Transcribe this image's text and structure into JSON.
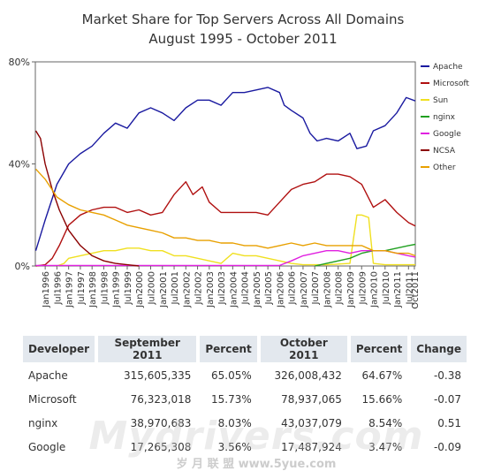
{
  "chart_data": {
    "type": "line",
    "title": "Market Share for Top Servers Across All Domains",
    "subtitle": "August 1995 - October 2011",
    "ylim": [
      0,
      80
    ],
    "y_ticks": [
      "0%",
      "40%",
      "80%"
    ],
    "x_range": [
      1995.58,
      2011.79
    ],
    "x_ticks": [
      "Jan1996",
      "Jul1996",
      "Jan1997",
      "Jul1997",
      "Jan1998",
      "Jul1998",
      "Jan1999",
      "Jul1999",
      "Jan2000",
      "Jul2000",
      "Jan2001",
      "Jul2001",
      "Jan2002",
      "Jul2002",
      "Jan2003",
      "Jul2003",
      "Jan2004",
      "Jul2004",
      "Jan2005",
      "Jul2005",
      "Jan2006",
      "Jul2006",
      "Jan2007",
      "Jul2007",
      "Jan2008",
      "Jul2008",
      "Jan2009",
      "Jul2009",
      "Jan2010",
      "Jul2010",
      "Jan2011",
      "Jul2011",
      "Oct2011"
    ],
    "legend_position": "right",
    "grid": false,
    "series": [
      {
        "name": "Apache",
        "color": "#1a1aa0",
        "points": [
          [
            1995.6,
            6
          ],
          [
            1996.0,
            18
          ],
          [
            1996.5,
            32
          ],
          [
            1997.0,
            40
          ],
          [
            1997.5,
            44
          ],
          [
            1998.0,
            47
          ],
          [
            1998.5,
            52
          ],
          [
            1999.0,
            56
          ],
          [
            1999.5,
            54
          ],
          [
            2000.0,
            60
          ],
          [
            2000.5,
            62
          ],
          [
            2001.0,
            60
          ],
          [
            2001.5,
            57
          ],
          [
            2002.0,
            62
          ],
          [
            2002.5,
            65
          ],
          [
            2003.0,
            65
          ],
          [
            2003.5,
            63
          ],
          [
            2004.0,
            68
          ],
          [
            2004.5,
            68
          ],
          [
            2005.0,
            69
          ],
          [
            2005.5,
            70
          ],
          [
            2006.0,
            68
          ],
          [
            2006.2,
            63
          ],
          [
            2006.5,
            61
          ],
          [
            2007.0,
            58
          ],
          [
            2007.3,
            52
          ],
          [
            2007.6,
            49
          ],
          [
            2008.0,
            50
          ],
          [
            2008.5,
            49
          ],
          [
            2009.0,
            52
          ],
          [
            2009.3,
            46
          ],
          [
            2009.7,
            47
          ],
          [
            2010.0,
            53
          ],
          [
            2010.5,
            55
          ],
          [
            2011.0,
            60
          ],
          [
            2011.4,
            66
          ],
          [
            2011.79,
            64.7
          ]
        ]
      },
      {
        "name": "Microsoft",
        "color": "#b01010",
        "points": [
          [
            1995.6,
            0
          ],
          [
            1996.0,
            0.5
          ],
          [
            1996.3,
            3
          ],
          [
            1996.6,
            8
          ],
          [
            1997.0,
            16
          ],
          [
            1997.5,
            20
          ],
          [
            1998.0,
            22
          ],
          [
            1998.5,
            23
          ],
          [
            1999.0,
            23
          ],
          [
            1999.5,
            21
          ],
          [
            2000.0,
            22
          ],
          [
            2000.5,
            20
          ],
          [
            2001.0,
            21
          ],
          [
            2001.5,
            28
          ],
          [
            2002.0,
            33
          ],
          [
            2002.3,
            28
          ],
          [
            2002.7,
            31
          ],
          [
            2003.0,
            25
          ],
          [
            2003.5,
            21
          ],
          [
            2004.0,
            21
          ],
          [
            2004.5,
            21
          ],
          [
            2005.0,
            21
          ],
          [
            2005.5,
            20
          ],
          [
            2006.0,
            25
          ],
          [
            2006.5,
            30
          ],
          [
            2007.0,
            32
          ],
          [
            2007.5,
            33
          ],
          [
            2008.0,
            36
          ],
          [
            2008.5,
            36
          ],
          [
            2009.0,
            35
          ],
          [
            2009.5,
            32
          ],
          [
            2010.0,
            23
          ],
          [
            2010.5,
            26
          ],
          [
            2011.0,
            21
          ],
          [
            2011.5,
            17
          ],
          [
            2011.79,
            15.7
          ]
        ]
      },
      {
        "name": "Sun",
        "color": "#f0e020",
        "points": [
          [
            1996.5,
            0
          ],
          [
            1996.8,
            1
          ],
          [
            1997.0,
            3
          ],
          [
            1997.5,
            4
          ],
          [
            1998.0,
            5
          ],
          [
            1998.5,
            6
          ],
          [
            1999.0,
            6
          ],
          [
            1999.5,
            7
          ],
          [
            2000.0,
            7
          ],
          [
            2000.5,
            6
          ],
          [
            2001.0,
            6
          ],
          [
            2001.5,
            4
          ],
          [
            2002.0,
            4
          ],
          [
            2002.5,
            3
          ],
          [
            2003.0,
            2
          ],
          [
            2003.5,
            1
          ],
          [
            2004.0,
            5
          ],
          [
            2004.5,
            4
          ],
          [
            2005.0,
            4
          ],
          [
            2005.5,
            3
          ],
          [
            2006.0,
            2
          ],
          [
            2006.5,
            1
          ],
          [
            2007.0,
            0.5
          ],
          [
            2008.0,
            0.5
          ],
          [
            2009.0,
            1
          ],
          [
            2009.3,
            20
          ],
          [
            2009.5,
            20
          ],
          [
            2009.8,
            19
          ],
          [
            2010.0,
            1
          ],
          [
            2010.5,
            0.5
          ],
          [
            2011.79,
            0.5
          ]
        ]
      },
      {
        "name": "nginx",
        "color": "#20a020",
        "points": [
          [
            2007.5,
            0
          ],
          [
            2008.0,
            1
          ],
          [
            2008.5,
            2
          ],
          [
            2009.0,
            3
          ],
          [
            2009.5,
            5
          ],
          [
            2010.0,
            6
          ],
          [
            2010.5,
            6
          ],
          [
            2011.0,
            7
          ],
          [
            2011.5,
            8
          ],
          [
            2011.79,
            8.5
          ]
        ]
      },
      {
        "name": "Google",
        "color": "#e020e0",
        "points": [
          [
            1995.6,
            0.2
          ],
          [
            2001.0,
            0.2
          ],
          [
            2006.0,
            0.2
          ],
          [
            2006.5,
            2
          ],
          [
            2007.0,
            4
          ],
          [
            2007.5,
            5
          ],
          [
            2008.0,
            6
          ],
          [
            2008.5,
            6
          ],
          [
            2009.0,
            5
          ],
          [
            2009.5,
            6
          ],
          [
            2010.0,
            6
          ],
          [
            2010.5,
            6
          ],
          [
            2011.0,
            5
          ],
          [
            2011.5,
            4
          ],
          [
            2011.79,
            3.5
          ]
        ]
      },
      {
        "name": "NCSA",
        "color": "#8b0000",
        "points": [
          [
            1995.6,
            53
          ],
          [
            1995.8,
            50
          ],
          [
            1996.0,
            40
          ],
          [
            1996.3,
            30
          ],
          [
            1996.6,
            22
          ],
          [
            1997.0,
            14
          ],
          [
            1997.5,
            8
          ],
          [
            1998.0,
            4
          ],
          [
            1998.5,
            2
          ],
          [
            1999.0,
            1
          ],
          [
            1999.5,
            0.5
          ],
          [
            2000.0,
            0
          ]
        ]
      },
      {
        "name": "Other",
        "color": "#e8a000",
        "points": [
          [
            1995.6,
            38
          ],
          [
            1996.0,
            34
          ],
          [
            1996.5,
            27
          ],
          [
            1997.0,
            24
          ],
          [
            1997.5,
            22
          ],
          [
            1998.0,
            21
          ],
          [
            1998.5,
            20
          ],
          [
            1999.0,
            18
          ],
          [
            1999.5,
            16
          ],
          [
            2000.0,
            15
          ],
          [
            2000.5,
            14
          ],
          [
            2001.0,
            13
          ],
          [
            2001.5,
            11
          ],
          [
            2002.0,
            11
          ],
          [
            2002.5,
            10
          ],
          [
            2003.0,
            10
          ],
          [
            2003.5,
            9
          ],
          [
            2004.0,
            9
          ],
          [
            2004.5,
            8
          ],
          [
            2005.0,
            8
          ],
          [
            2005.5,
            7
          ],
          [
            2006.0,
            8
          ],
          [
            2006.5,
            9
          ],
          [
            2007.0,
            8
          ],
          [
            2007.5,
            9
          ],
          [
            2008.0,
            8
          ],
          [
            2008.5,
            8
          ],
          [
            2009.0,
            8
          ],
          [
            2009.5,
            8
          ],
          [
            2010.0,
            6
          ],
          [
            2010.5,
            6
          ],
          [
            2011.0,
            5
          ],
          [
            2011.5,
            5
          ],
          [
            2011.79,
            4
          ]
        ]
      }
    ]
  },
  "table": {
    "headers": [
      "Developer",
      "September 2011",
      "Percent",
      "October 2011",
      "Percent",
      "Change"
    ],
    "rows": [
      [
        "Apache",
        "315,605,335",
        "65.05%",
        "326,008,432",
        "64.67%",
        "-0.38"
      ],
      [
        "Microsoft",
        "76,323,018",
        "15.73%",
        "78,937,065",
        "15.66%",
        "-0.07"
      ],
      [
        "nginx",
        "38,970,683",
        "8.03%",
        "43,037,079",
        "8.54%",
        "0.51"
      ],
      [
        "Google",
        "17,265,308",
        "3.56%",
        "17,487,924",
        "3.47%",
        "-0.09"
      ]
    ]
  },
  "watermark": {
    "main": "Mydrivers.com",
    "sub": "岁 月 联 盟  www.5yue.com"
  }
}
